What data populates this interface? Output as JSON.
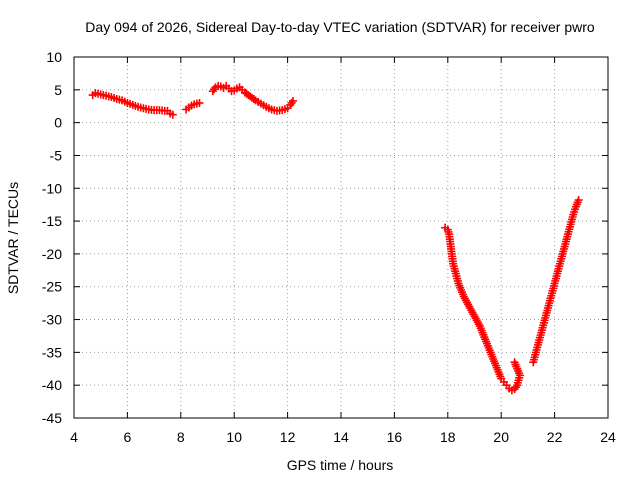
{
  "chart_data": {
    "type": "scatter",
    "title": "Day 094 of 2026, Sidereal Day-to-day VTEC variation (SDTVAR) for receiver pwro",
    "xlabel": "GPS time / hours",
    "ylabel": "SDTVAR / TECUs",
    "xlim": [
      4,
      24
    ],
    "ylim": [
      -45,
      10
    ],
    "xticks": [
      4,
      6,
      8,
      10,
      12,
      14,
      16,
      18,
      20,
      22,
      24
    ],
    "yticks": [
      10,
      5,
      0,
      -5,
      -10,
      -15,
      -20,
      -25,
      -30,
      -35,
      -40,
      -45
    ],
    "grid": true,
    "marker": "plus",
    "colors": {
      "series": "#ff0000",
      "grid": "#a0a0a0",
      "axis": "#000000",
      "background": "#ffffff"
    },
    "series": [
      {
        "name": "segment-1",
        "x": [
          4.7,
          4.8,
          5.0,
          5.2,
          5.4,
          5.6,
          5.8,
          6.0,
          6.2,
          6.4,
          6.6,
          6.8,
          7.0,
          7.2,
          7.4,
          7.5,
          7.6,
          7.7
        ],
        "y": [
          4.2,
          4.5,
          4.3,
          4.1,
          3.9,
          3.6,
          3.4,
          3.0,
          2.7,
          2.4,
          2.2,
          2.0,
          1.9,
          1.9,
          1.8,
          1.8,
          1.4,
          1.2
        ]
      },
      {
        "name": "segment-2",
        "x": [
          8.2,
          8.3,
          8.4,
          8.5,
          8.6,
          8.7
        ],
        "y": [
          2.0,
          2.3,
          2.6,
          2.8,
          2.9,
          3.0
        ]
      },
      {
        "name": "segment-3",
        "x": [
          9.2,
          9.3,
          9.4,
          9.5,
          9.6,
          9.7,
          9.8,
          9.9,
          10.0,
          10.1,
          10.2,
          10.3,
          10.4,
          10.6,
          10.8,
          11.0,
          11.2,
          11.4,
          11.6,
          11.8,
          12.0,
          12.1,
          12.2
        ],
        "y": [
          4.8,
          5.4,
          5.6,
          5.5,
          5.3,
          5.6,
          5.2,
          4.8,
          4.9,
          5.2,
          5.4,
          5.0,
          4.6,
          4.0,
          3.4,
          2.9,
          2.4,
          2.0,
          1.8,
          1.9,
          2.2,
          2.7,
          3.3
        ]
      },
      {
        "name": "segment-4",
        "x": [
          17.9,
          18.0,
          18.05,
          18.1,
          18.15,
          18.2,
          18.3,
          18.4,
          18.5,
          18.6,
          18.8,
          19.0,
          19.2,
          19.4,
          19.6,
          19.8,
          20.0,
          20.1,
          20.2,
          20.3,
          20.4,
          20.5,
          20.6,
          20.7,
          20.6,
          20.5
        ],
        "y": [
          -16.0,
          -16.3,
          -17.0,
          -18.5,
          -20.0,
          -21.5,
          -23.0,
          -24.5,
          -25.5,
          -26.5,
          -28.0,
          -29.5,
          -31.0,
          -33.0,
          -35.0,
          -37.0,
          -39.0,
          -39.5,
          -40.0,
          -40.5,
          -40.8,
          -40.6,
          -40.0,
          -38.5,
          -37.5,
          -36.5
        ]
      },
      {
        "name": "segment-5",
        "x": [
          21.2,
          21.3,
          21.4,
          21.5,
          21.6,
          21.7,
          21.8,
          21.9,
          22.0,
          22.1,
          22.2,
          22.3,
          22.4,
          22.5,
          22.6,
          22.7,
          22.8,
          22.9
        ],
        "y": [
          -36.5,
          -35.0,
          -33.5,
          -32.0,
          -30.5,
          -29.0,
          -27.5,
          -26.0,
          -24.5,
          -23.0,
          -21.5,
          -20.0,
          -18.5,
          -17.0,
          -15.5,
          -14.0,
          -12.8,
          -11.8
        ]
      }
    ]
  }
}
